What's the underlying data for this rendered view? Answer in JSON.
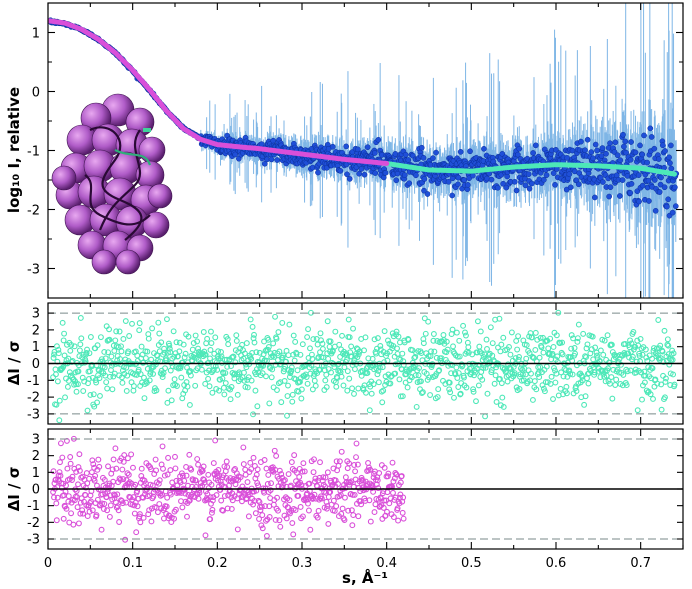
{
  "chart_data": [
    {
      "type": "scatter",
      "panel": "scattering-curve",
      "ylabel": "log₁₀ I, relative",
      "xlim": [
        0,
        0.75
      ],
      "ylim": [
        -3.5,
        1.5
      ],
      "x_ticks": [
        0,
        0.1,
        0.2,
        0.3,
        0.4,
        0.5,
        0.6,
        0.7
      ],
      "y_ticks": [
        1,
        0,
        -1,
        -2,
        -3
      ],
      "y_tick_labels": [
        "1",
        "0",
        "-1",
        "-2",
        "-3"
      ],
      "series": [
        {
          "role": "experimental data with error bars",
          "color": "#1f4fd8",
          "error_color": "#7fb6e6",
          "x": [
            0.005,
            0.02,
            0.04,
            0.06,
            0.08,
            0.1,
            0.12,
            0.14,
            0.16,
            0.18,
            0.2,
            0.22,
            0.25,
            0.3,
            0.35,
            0.4,
            0.45,
            0.5,
            0.55,
            0.6,
            0.65,
            0.7,
            0.74
          ],
          "y": [
            1.18,
            1.15,
            1.05,
            0.88,
            0.65,
            0.35,
            0.02,
            -0.33,
            -0.62,
            -0.8,
            -0.9,
            -0.94,
            -0.98,
            -1.08,
            -1.16,
            -1.22,
            -1.33,
            -1.35,
            -1.28,
            -1.24,
            -1.26,
            -1.3,
            -1.4
          ]
        },
        {
          "role": "model fit over full range",
          "color": "#4de8b8",
          "x": [
            0.4,
            0.45,
            0.5,
            0.55,
            0.6,
            0.65,
            0.7,
            0.74
          ],
          "y": [
            -1.22,
            -1.33,
            -1.35,
            -1.28,
            -1.24,
            -1.26,
            -1.3,
            -1.4
          ]
        },
        {
          "role": "model fit up to 0.42",
          "color": "#d94fd9",
          "x": [
            0.0,
            0.02,
            0.04,
            0.06,
            0.08,
            0.1,
            0.12,
            0.14,
            0.16,
            0.18,
            0.2,
            0.22,
            0.25,
            0.3,
            0.35,
            0.4
          ],
          "y": [
            1.2,
            1.16,
            1.05,
            0.88,
            0.65,
            0.36,
            0.03,
            -0.33,
            -0.63,
            -0.81,
            -0.9,
            -0.93,
            -0.97,
            -1.06,
            -1.15,
            -1.22
          ]
        }
      ],
      "inset": "molecular structure rendering (purple spheres with cartoon chain)"
    },
    {
      "type": "scatter",
      "panel": "residuals-full-range",
      "ylabel": "ΔI / σ",
      "color": "#4de8b8",
      "xlim": [
        0,
        0.75
      ],
      "ylim": [
        -3.6,
        3.6
      ],
      "x_range": [
        0.0,
        0.74
      ],
      "y_ticks": [
        3,
        2,
        1,
        0,
        -1,
        -2,
        -3
      ],
      "y_tick_labels": [
        "3",
        "2",
        "1",
        "0",
        "-1",
        "-2",
        "-3"
      ],
      "reference_lines": [
        3,
        -3
      ],
      "zero_line": 0
    },
    {
      "type": "scatter",
      "panel": "residuals-low-range",
      "ylabel": "ΔI / σ",
      "xlabel": "s, Å⁻¹",
      "color": "#d94fd9",
      "xlim": [
        0,
        0.75
      ],
      "ylim": [
        -3.6,
        3.6
      ],
      "x_range": [
        0.0,
        0.42
      ],
      "y_ticks": [
        3,
        2,
        1,
        0,
        -1,
        -2,
        -3
      ],
      "y_tick_labels": [
        "3",
        "2",
        "1",
        "0",
        "-1",
        "-2",
        "-3"
      ],
      "x_ticks": [
        0,
        0.1,
        0.2,
        0.3,
        0.4,
        0.5,
        0.6,
        0.7
      ],
      "x_tick_labels": [
        "0",
        "0.1",
        "0.2",
        "0.3",
        "0.4",
        "0.5",
        "0.6",
        "0.7"
      ],
      "reference_lines": [
        3,
        -3
      ],
      "zero_line": 0
    }
  ]
}
